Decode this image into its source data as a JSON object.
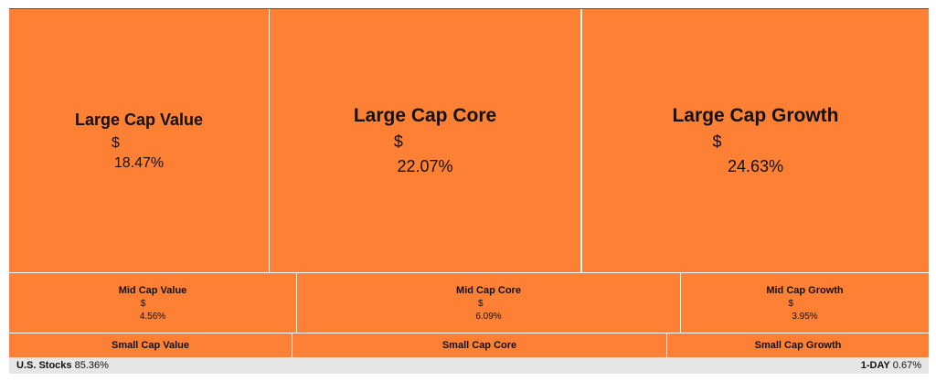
{
  "tiles": {
    "large_value": {
      "name": "Large Cap Value",
      "currency": "$",
      "pct": "18.47%"
    },
    "large_core": {
      "name": "Large Cap Core",
      "currency": "$",
      "pct": "22.07%"
    },
    "large_growth": {
      "name": "Large Cap Growth",
      "currency": "$",
      "pct": "24.63%"
    },
    "mid_value": {
      "name": "Mid Cap Value",
      "currency": "$",
      "pct": "4.56%"
    },
    "mid_core": {
      "name": "Mid Cap Core",
      "currency": "$",
      "pct": "6.09%"
    },
    "mid_growth": {
      "name": "Mid Cap Growth",
      "currency": "$",
      "pct": "3.95%"
    },
    "small_value": {
      "name": "Small Cap Value"
    },
    "small_core": {
      "name": "Small Cap Core"
    },
    "small_growth": {
      "name": "Small Cap Growth"
    }
  },
  "footer": {
    "left_label": "U.S. Stocks",
    "left_value": "85.36%",
    "right_label": "1-DAY",
    "right_value": "0.67%"
  },
  "colors": {
    "tile": "#fe8034",
    "footer_bg": "#e6e6e6"
  }
}
